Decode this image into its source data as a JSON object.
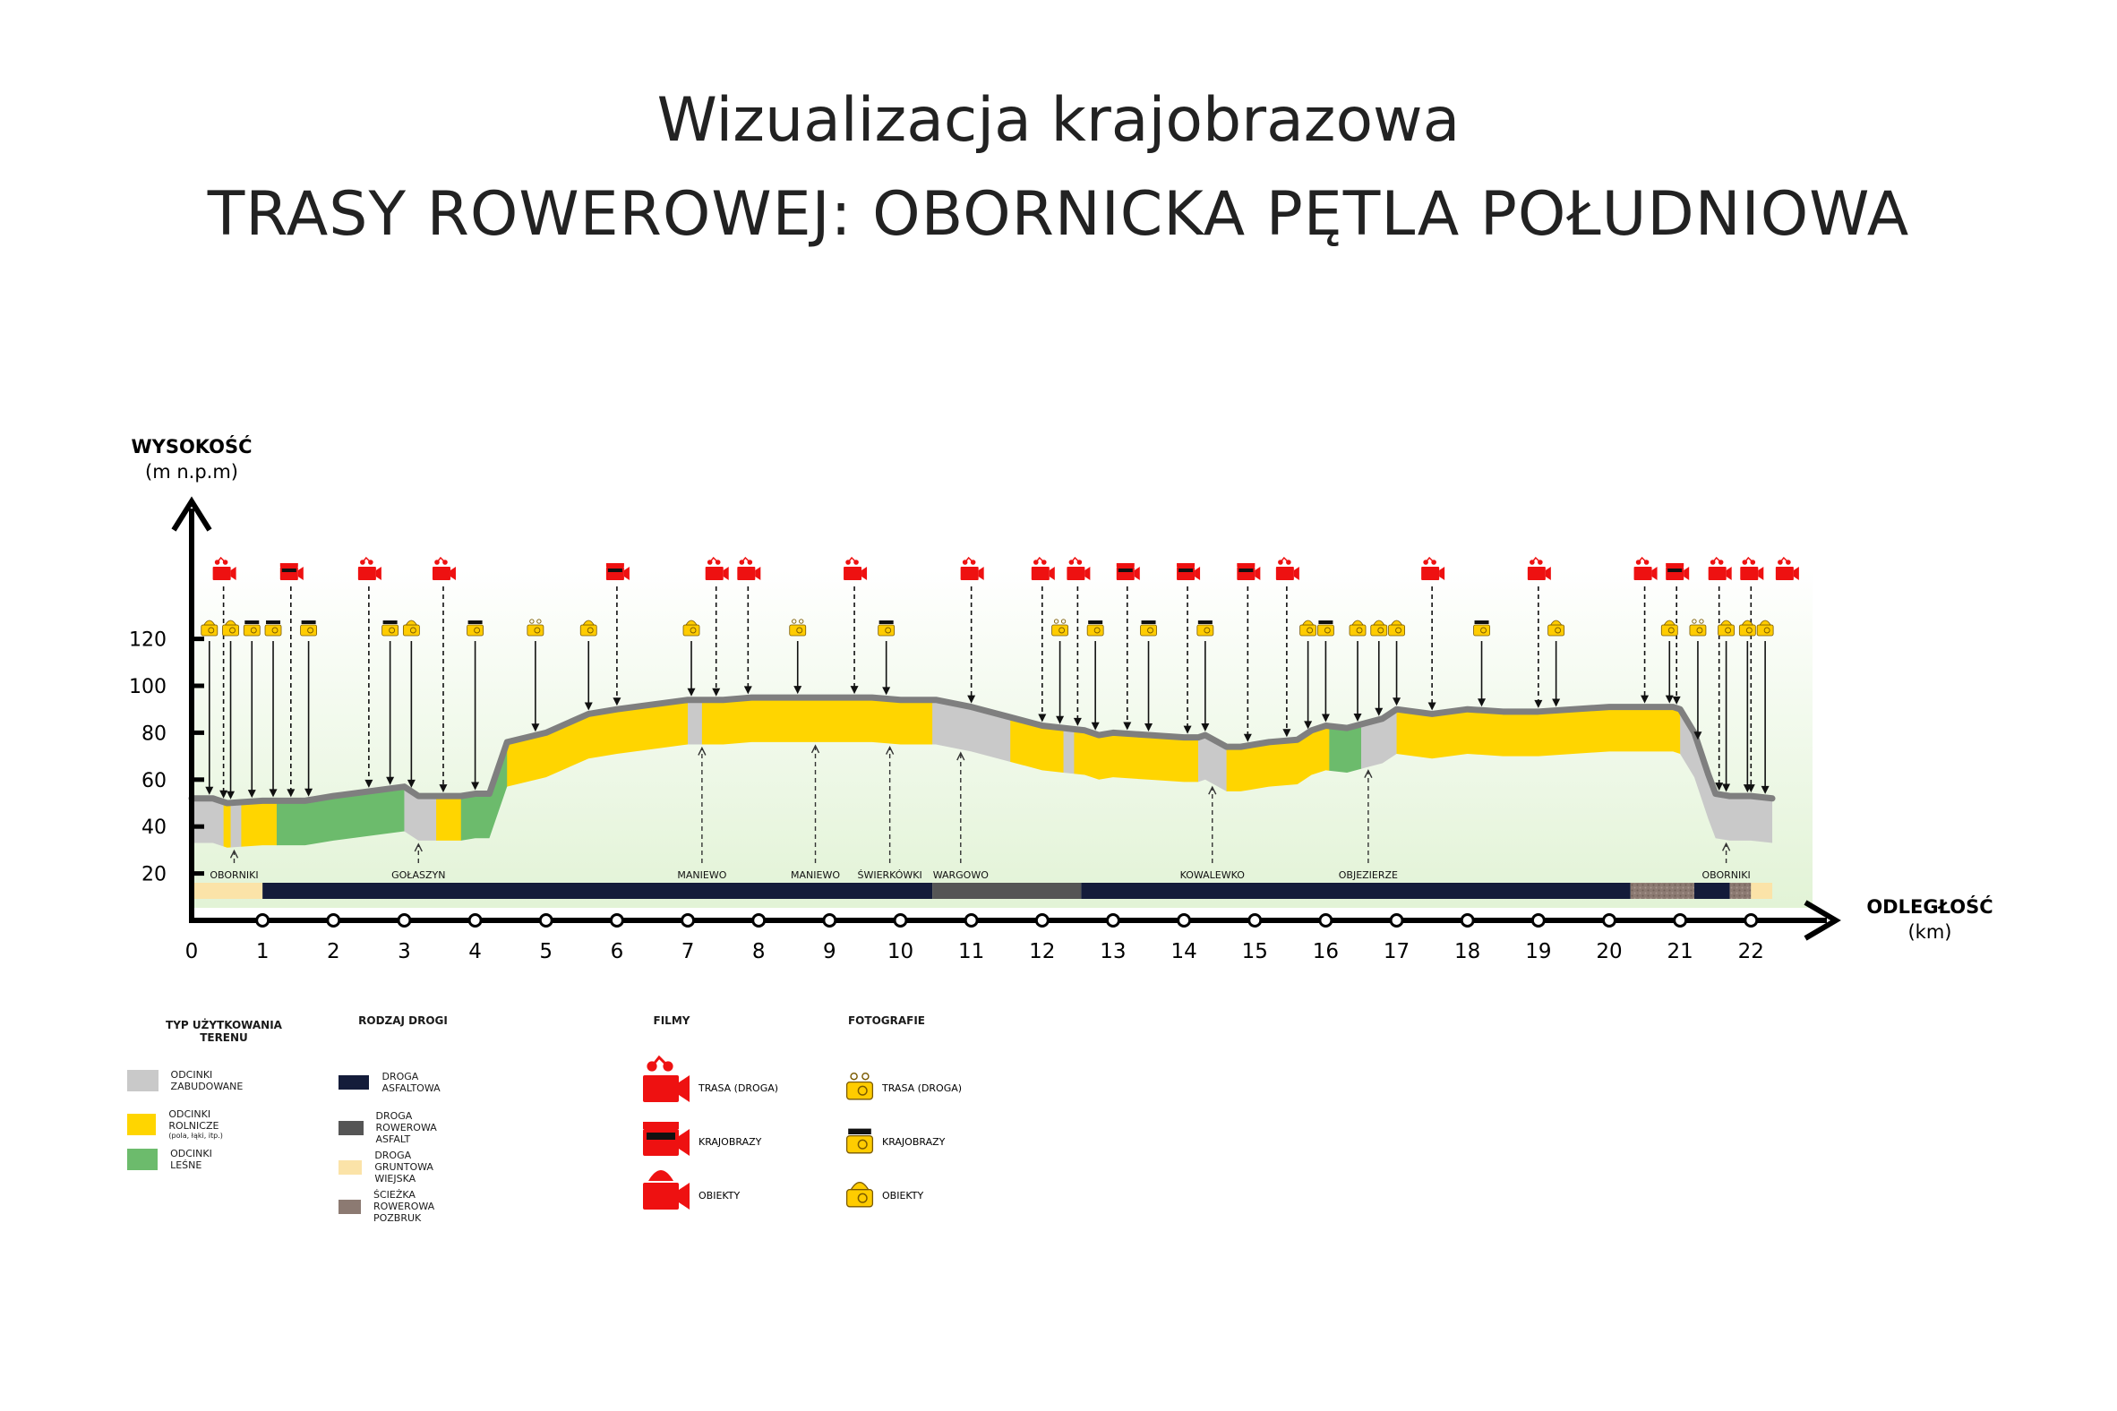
{
  "title": {
    "line1": "Wizualizacja krajobrazowa",
    "line2": "TRASY ROWEROWEJ: OBORNICKA PĘTLA POŁUDNIOWA"
  },
  "colors": {
    "built": "#c9c9c9",
    "agri": "#ffd500",
    "forest": "#6cbb6c",
    "asphalt": "#141c3a",
    "bike_asphalt": "#555555",
    "dirt": "#fbe3a8",
    "paving": "#8c7a72",
    "film": "#ee1111",
    "photo": "#ffcc00",
    "profile_line": "#7f7f7f"
  },
  "chart_data": {
    "type": "diagram",
    "y_axis": {
      "label": "WYSOKOŚĆ",
      "unit": "(m n.p.m)",
      "ticks": [
        20,
        40,
        60,
        80,
        100,
        120
      ]
    },
    "x_axis": {
      "label": "ODLEGŁOŚĆ",
      "unit": "(km)",
      "ticks": [
        0,
        1,
        2,
        3,
        4,
        5,
        6,
        7,
        8,
        9,
        10,
        11,
        12,
        13,
        14,
        15,
        16,
        17,
        18,
        19,
        20,
        21,
        22
      ]
    },
    "profile": [
      [
        0,
        52
      ],
      [
        0.3,
        52
      ],
      [
        0.5,
        50
      ],
      [
        1,
        51
      ],
      [
        1.6,
        51
      ],
      [
        2,
        53
      ],
      [
        3,
        57
      ],
      [
        3.2,
        53
      ],
      [
        3.8,
        53
      ],
      [
        4,
        54
      ],
      [
        4.2,
        54
      ],
      [
        4.45,
        76
      ],
      [
        5,
        80
      ],
      [
        5.6,
        88
      ],
      [
        6,
        90
      ],
      [
        6.5,
        92
      ],
      [
        7,
        94
      ],
      [
        7.5,
        94
      ],
      [
        7.9,
        95
      ],
      [
        8.5,
        95
      ],
      [
        9,
        95
      ],
      [
        9.6,
        95
      ],
      [
        10,
        94
      ],
      [
        10.5,
        94
      ],
      [
        11,
        91
      ],
      [
        11.5,
        87
      ],
      [
        12,
        83
      ],
      [
        12.3,
        82
      ],
      [
        12.6,
        81
      ],
      [
        12.8,
        79
      ],
      [
        13,
        80
      ],
      [
        13.5,
        79
      ],
      [
        14,
        78
      ],
      [
        14.2,
        78
      ],
      [
        14.3,
        79
      ],
      [
        14.6,
        74
      ],
      [
        14.8,
        74
      ],
      [
        15.2,
        76
      ],
      [
        15.6,
        77
      ],
      [
        15.8,
        81
      ],
      [
        16,
        83
      ],
      [
        16.3,
        82
      ],
      [
        16.8,
        86
      ],
      [
        17,
        90
      ],
      [
        17.5,
        88
      ],
      [
        18,
        90
      ],
      [
        18.5,
        89
      ],
      [
        19,
        89
      ],
      [
        20,
        91
      ],
      [
        20.5,
        91
      ],
      [
        20.9,
        91
      ],
      [
        21,
        90
      ],
      [
        21.2,
        80
      ],
      [
        21.4,
        62
      ],
      [
        21.5,
        54
      ],
      [
        21.7,
        53
      ],
      [
        22,
        53
      ],
      [
        22.3,
        52
      ]
    ],
    "land_use": [
      {
        "type": "built",
        "from": 0,
        "to": 0.45
      },
      {
        "type": "agri",
        "from": 0.45,
        "to": 0.55
      },
      {
        "type": "built",
        "from": 0.55,
        "to": 0.7
      },
      {
        "type": "agri",
        "from": 0.7,
        "to": 1.2
      },
      {
        "type": "forest",
        "from": 1.2,
        "to": 3.0
      },
      {
        "type": "built",
        "from": 3.0,
        "to": 3.45
      },
      {
        "type": "agri",
        "from": 3.45,
        "to": 3.8
      },
      {
        "type": "forest",
        "from": 3.8,
        "to": 4.45
      },
      {
        "type": "agri",
        "from": 4.45,
        "to": 7.0
      },
      {
        "type": "built",
        "from": 7.0,
        "to": 7.2
      },
      {
        "type": "agri",
        "from": 7.2,
        "to": 10.45
      },
      {
        "type": "built",
        "from": 10.45,
        "to": 11.55
      },
      {
        "type": "agri",
        "from": 11.55,
        "to": 12.3
      },
      {
        "type": "built",
        "from": 12.3,
        "to": 12.45
      },
      {
        "type": "agri",
        "from": 12.45,
        "to": 14.2
      },
      {
        "type": "built",
        "from": 14.2,
        "to": 14.6
      },
      {
        "type": "agri",
        "from": 14.6,
        "to": 16.05
      },
      {
        "type": "forest",
        "from": 16.05,
        "to": 16.5
      },
      {
        "type": "built",
        "from": 16.5,
        "to": 17.0
      },
      {
        "type": "agri",
        "from": 17.0,
        "to": 21.0
      },
      {
        "type": "built",
        "from": 21.0,
        "to": 22.3
      }
    ],
    "villages": [
      {
        "name": "OBORNIKI",
        "km": 0.6
      },
      {
        "name": "GOŁASZYN",
        "km": 3.2
      },
      {
        "name": "MANIEWO",
        "km": 7.2
      },
      {
        "name": "MANIEWO",
        "km": 8.8
      },
      {
        "name": "ŚWIERKÓWKI",
        "km": 9.85
      },
      {
        "name": "WARGOWO",
        "km": 10.85
      },
      {
        "name": "KOWALEWKO",
        "km": 14.4
      },
      {
        "name": "OBJEZIERZE",
        "km": 16.6
      },
      {
        "name": "OBORNIKI",
        "km": 21.65
      }
    ],
    "road_segments": [
      {
        "type": "dirt",
        "from": 0,
        "to": 1
      },
      {
        "type": "asphalt",
        "from": 1,
        "to": 10.45
      },
      {
        "type": "bike_asphalt",
        "from": 10.45,
        "to": 12.55
      },
      {
        "type": "asphalt",
        "from": 12.55,
        "to": 20.3
      },
      {
        "type": "paving",
        "from": 20.3,
        "to": 21.2
      },
      {
        "type": "asphalt",
        "from": 21.2,
        "to": 21.7
      },
      {
        "type": "paving",
        "from": 21.7,
        "to": 22
      },
      {
        "type": "dirt",
        "from": 22,
        "to": 22.3
      }
    ],
    "films": [
      {
        "kind": "trasa",
        "km": 0.45
      },
      {
        "kind": "krajobrazy",
        "km": 1.4
      },
      {
        "kind": "trasa",
        "km": 2.5
      },
      {
        "kind": "trasa",
        "km": 3.55
      },
      {
        "kind": "krajobrazy",
        "km": 6.0
      },
      {
        "kind": "trasa",
        "km": 7.4
      },
      {
        "kind": "trasa",
        "km": 7.85
      },
      {
        "kind": "trasa",
        "km": 9.35
      },
      {
        "kind": "trasa",
        "km": 11.0
      },
      {
        "kind": "trasa",
        "km": 12.0
      },
      {
        "kind": "trasa",
        "km": 12.5
      },
      {
        "kind": "krajobrazy",
        "km": 13.2
      },
      {
        "kind": "krajobrazy",
        "km": 14.05
      },
      {
        "kind": "krajobrazy",
        "km": 14.9
      },
      {
        "kind": "trasa",
        "km": 15.45
      },
      {
        "kind": "trasa",
        "km": 17.5
      },
      {
        "kind": "trasa",
        "km": 19.0
      },
      {
        "kind": "trasa",
        "km": 20.5
      },
      {
        "kind": "krajobrazy",
        "km": 20.95
      },
      {
        "kind": "trasa",
        "km": 21.55
      },
      {
        "kind": "trasa",
        "km": 22.0
      },
      {
        "kind": "trasa",
        "km": 22.5
      }
    ],
    "photos": [
      {
        "kind": "obiekty",
        "km": 0.25
      },
      {
        "kind": "obiekty",
        "km": 0.55
      },
      {
        "kind": "krajobrazy",
        "km": 0.85
      },
      {
        "kind": "krajobrazy",
        "km": 1.15
      },
      {
        "kind": "krajobrazy",
        "km": 1.65
      },
      {
        "kind": "krajobrazy",
        "km": 2.8
      },
      {
        "kind": "obiekty",
        "km": 3.1
      },
      {
        "kind": "krajobrazy",
        "km": 4.0
      },
      {
        "kind": "trasa",
        "km": 4.85
      },
      {
        "kind": "obiekty",
        "km": 5.6
      },
      {
        "kind": "obiekty",
        "km": 7.05
      },
      {
        "kind": "trasa",
        "km": 8.55
      },
      {
        "kind": "krajobrazy",
        "km": 9.8
      },
      {
        "kind": "trasa",
        "km": 12.25
      },
      {
        "kind": "krajobrazy",
        "km": 12.75
      },
      {
        "kind": "krajobrazy",
        "km": 13.5
      },
      {
        "kind": "krajobrazy",
        "km": 14.3
      },
      {
        "kind": "obiekty",
        "km": 15.75
      },
      {
        "kind": "krajobrazy",
        "km": 16.0
      },
      {
        "kind": "obiekty",
        "km": 16.45
      },
      {
        "kind": "obiekty",
        "km": 16.75
      },
      {
        "kind": "obiekty",
        "km": 17.0
      },
      {
        "kind": "krajobrazy",
        "km": 18.2
      },
      {
        "kind": "obiekty",
        "km": 19.25
      },
      {
        "kind": "obiekty",
        "km": 20.85
      },
      {
        "kind": "trasa",
        "km": 21.25
      },
      {
        "kind": "obiekty",
        "km": 21.65
      },
      {
        "kind": "obiekty",
        "km": 21.95
      },
      {
        "kind": "obiekty",
        "km": 22.2
      }
    ]
  },
  "legend": {
    "land_use": {
      "title": "TYP UŻYTKOWANIA TERENU",
      "items": [
        {
          "label": "ODCINKI ZABUDOWANE",
          "sub": ""
        },
        {
          "label": "ODCINKI ROLNICZE",
          "sub": "(pola, łąki, itp.)"
        },
        {
          "label": "ODCINKI LEŚNE",
          "sub": ""
        }
      ]
    },
    "roads": {
      "title": "RODZAJ DROGI",
      "items": [
        {
          "label": "DROGA ASFALTOWA"
        },
        {
          "label": "DROGA ROWEROWA ASFALT"
        },
        {
          "label": "DROGA GRUNTOWA WIEJSKA"
        },
        {
          "label": "ŚCIEŻKA ROWEROWA POZBRUK"
        }
      ]
    },
    "films": {
      "title": "FILMY",
      "items": [
        {
          "label": "TRASA (DROGA)"
        },
        {
          "label": "KRAJOBRAZY"
        },
        {
          "label": "OBIEKTY"
        }
      ]
    },
    "photos": {
      "title": "FOTOGRAFIE",
      "items": [
        {
          "label": "TRASA (DROGA)"
        },
        {
          "label": "KRAJOBRAZY"
        },
        {
          "label": "OBIEKTY"
        }
      ]
    }
  }
}
